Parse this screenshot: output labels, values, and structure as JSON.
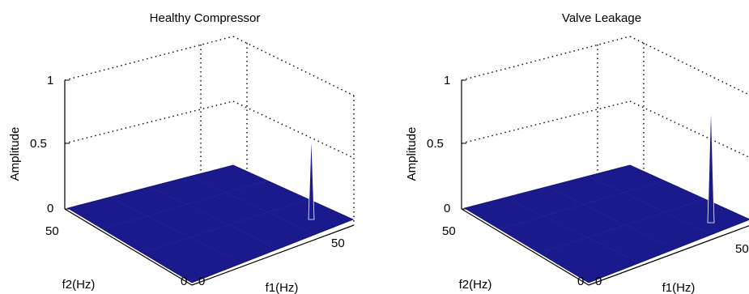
{
  "chart_data": [
    {
      "type": "surface",
      "title": "Healthy Compressor",
      "xlabel": "f1(Hz)",
      "ylabel": "f2(Hz)",
      "zlabel": "Amplitude",
      "xlim": [
        0,
        60
      ],
      "ylim": [
        0,
        60
      ],
      "zlim": [
        0,
        1
      ],
      "x_ticks": [
        "0",
        "50"
      ],
      "y_ticks": [
        "0",
        "50"
      ],
      "z_ticks": [
        "0",
        "0.5",
        "1"
      ],
      "grid": true,
      "surface_color": "#1a1a8c",
      "baseline_amplitude": 0,
      "peaks": [
        {
          "f1": 50,
          "f2": 0,
          "amplitude": 0.58
        }
      ]
    },
    {
      "type": "surface",
      "title": "Valve Leakage",
      "xlabel": "f1(Hz)",
      "ylabel": "f2(Hz)",
      "zlabel": "Amplitude",
      "xlim": [
        0,
        60
      ],
      "ylim": [
        0,
        60
      ],
      "zlim": [
        0,
        1
      ],
      "x_ticks": [
        "0",
        "50"
      ],
      "y_ticks": [
        "0",
        "50"
      ],
      "z_ticks": [
        "0",
        "0.5",
        "1"
      ],
      "grid": true,
      "surface_color": "#1a1a8c",
      "baseline_amplitude": 0,
      "peaks": [
        {
          "f1": 50,
          "f2": 0,
          "amplitude": 0.8
        }
      ]
    }
  ]
}
